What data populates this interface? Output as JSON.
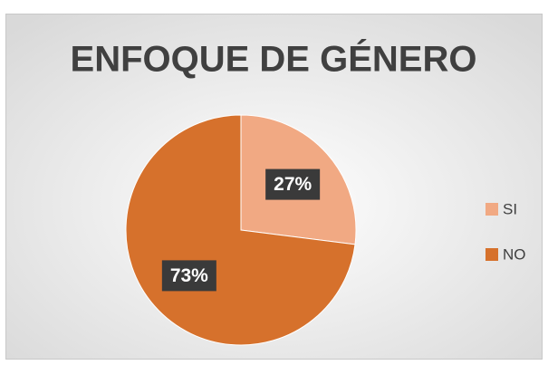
{
  "chart_data": {
    "type": "pie",
    "title": "ENFOQUE DE GÉNERO",
    "categories": [
      "SI",
      "NO"
    ],
    "values": [
      27,
      73
    ],
    "value_labels": [
      "27%",
      "73%"
    ],
    "colors": [
      "#f1a983",
      "#d6712c"
    ],
    "legend": "right"
  }
}
